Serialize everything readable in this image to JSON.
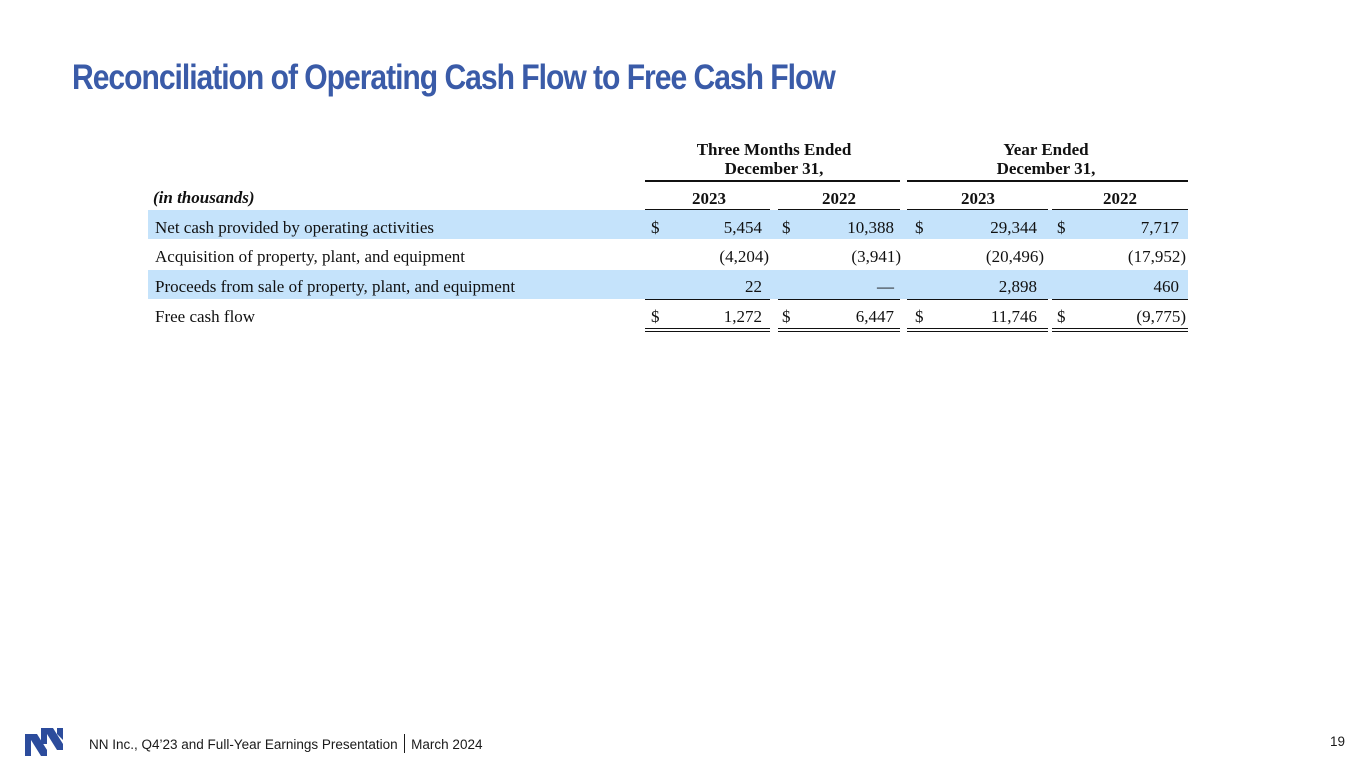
{
  "slide": {
    "title": "Reconciliation of Operating Cash Flow to Free Cash Flow",
    "page_number": "19"
  },
  "footer": {
    "company_text": "NN Inc., Q4’23 and Full-Year Earnings Presentation",
    "date_text": "March 2024"
  },
  "table": {
    "group_headers": {
      "quarter_line1": "Three Months Ended",
      "quarter_line2": "December 31,",
      "year_line1": "Year Ended",
      "year_line2": "December 31,"
    },
    "units_label": "(in thousands)",
    "columns": [
      "2023",
      "2022",
      "2023",
      "2022"
    ],
    "rows": [
      {
        "label": "Net cash provided by operating activities",
        "values": [
          "5,454",
          "10,388",
          "29,344",
          "7,717"
        ],
        "dollars": [
          "$",
          "$",
          "$",
          "$"
        ]
      },
      {
        "label": "Acquisition of property, plant, and equipment",
        "values": [
          "(4,204)",
          "(3,941)",
          "(20,496)",
          "(17,952)"
        ]
      },
      {
        "label": "Proceeds from sale of property, plant, and equipment",
        "values": [
          "22",
          "—",
          "2,898",
          "460"
        ]
      },
      {
        "label": "Free cash flow",
        "values": [
          "1,272",
          "6,447",
          "11,746",
          "(9,775)"
        ],
        "dollars": [
          "$",
          "$",
          "$",
          "$"
        ]
      }
    ]
  },
  "colors": {
    "title": "#3a5ba8",
    "row_highlight": "#c5e3fb",
    "logo": "#2c4c9c"
  }
}
